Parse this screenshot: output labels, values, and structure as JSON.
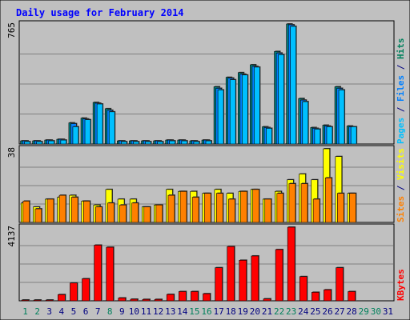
{
  "chart_data": {
    "type": "bar",
    "title": "Daily usage for February 2014",
    "categories": [
      "1",
      "2",
      "3",
      "4",
      "5",
      "6",
      "7",
      "8",
      "9",
      "10",
      "11",
      "12",
      "13",
      "14",
      "15",
      "16",
      "17",
      "18",
      "19",
      "20",
      "21",
      "22",
      "23",
      "24",
      "25",
      "26",
      "27",
      "28",
      "29",
      "30",
      "31"
    ],
    "weekend_days": [
      "1",
      "2",
      "8",
      "15",
      "16",
      "22",
      "23",
      "29",
      "30"
    ],
    "panels": [
      {
        "id": "hits-files-pages",
        "max_label": "765",
        "ylim": [
          0,
          765
        ],
        "legend": [
          {
            "text": "Pages",
            "color": "#00c0ff"
          },
          {
            "text": " / ",
            "color": "#000080"
          },
          {
            "text": "Files",
            "color": "#0080ff"
          },
          {
            "text": " / ",
            "color": "#000080"
          },
          {
            "text": "Hits",
            "color": "#00805c"
          }
        ],
        "series": [
          {
            "name": "Hits",
            "color": "#008080",
            "values": [
              20,
              20,
              25,
              30,
              135,
              165,
              265,
              225,
              20,
              20,
              20,
              20,
              25,
              25,
              20,
              25,
              365,
              425,
              455,
              505,
              110,
              590,
              765,
              290,
              105,
              120,
              365,
              115,
              0,
              0,
              0
            ]
          },
          {
            "name": "Files",
            "color": "#0080ff",
            "values": [
              20,
              20,
              25,
              30,
              130,
              160,
              260,
              215,
              20,
              20,
              20,
              20,
              25,
              25,
              20,
              25,
              355,
              420,
              445,
              495,
              105,
              580,
              760,
              280,
              100,
              115,
              355,
              110,
              0,
              0,
              0
            ]
          },
          {
            "name": "Pages",
            "color": "#00c0ff",
            "values": [
              15,
              15,
              20,
              25,
              110,
              155,
              255,
              205,
              15,
              15,
              15,
              15,
              20,
              20,
              15,
              20,
              345,
              410,
              440,
              490,
              100,
              570,
              750,
              270,
              95,
              110,
              345,
              110,
              0,
              0,
              0
            ]
          }
        ]
      },
      {
        "id": "visits-sites",
        "max_label": "38",
        "ylim": [
          0,
          38
        ],
        "legend": [
          {
            "text": "Sites",
            "color": "#ff8000"
          },
          {
            "text": " / ",
            "color": "#000080"
          },
          {
            "text": "Visits",
            "color": "#ffff00"
          }
        ],
        "series": [
          {
            "name": "Visits",
            "color": "#ffff00",
            "values": [
              10,
              8,
              12,
              13,
              14,
              11,
              9,
              17,
              12,
              12,
              8,
              9,
              17,
              16,
              16,
              15,
              17,
              15,
              16,
              17,
              12,
              16,
              22,
              25,
              22,
              38,
              34,
              15,
              0,
              0,
              0
            ]
          },
          {
            "name": "Sites",
            "color": "#ff8000",
            "values": [
              11,
              7,
              12,
              14,
              13,
              11,
              8,
              10,
              9,
              10,
              8,
              9,
              14,
              16,
              13,
              15,
              15,
              12,
              16,
              17,
              12,
              15,
              20,
              20,
              12,
              23,
              15,
              15,
              0,
              0,
              0
            ]
          }
        ]
      },
      {
        "id": "kbytes",
        "max_label": "4137",
        "ylim": [
          0,
          4137
        ],
        "legend": [
          {
            "text": "KBytes",
            "color": "#ff0000"
          }
        ],
        "series": [
          {
            "name": "KBytes",
            "color": "#ff0000",
            "values": [
              30,
              30,
              30,
              350,
              1000,
              1240,
              3130,
              3010,
              160,
              90,
              80,
              80,
              360,
              520,
              520,
              400,
              1860,
              3050,
              2280,
              2520,
              110,
              2880,
              4137,
              1360,
              480,
              620,
              1860,
              520,
              0,
              0,
              0
            ]
          }
        ]
      }
    ],
    "colors": {
      "background": "#c0c0c0",
      "title": "#0000ff",
      "weekday_label": "#000080",
      "weekend_label": "#00805c",
      "grid": "#808080"
    }
  }
}
